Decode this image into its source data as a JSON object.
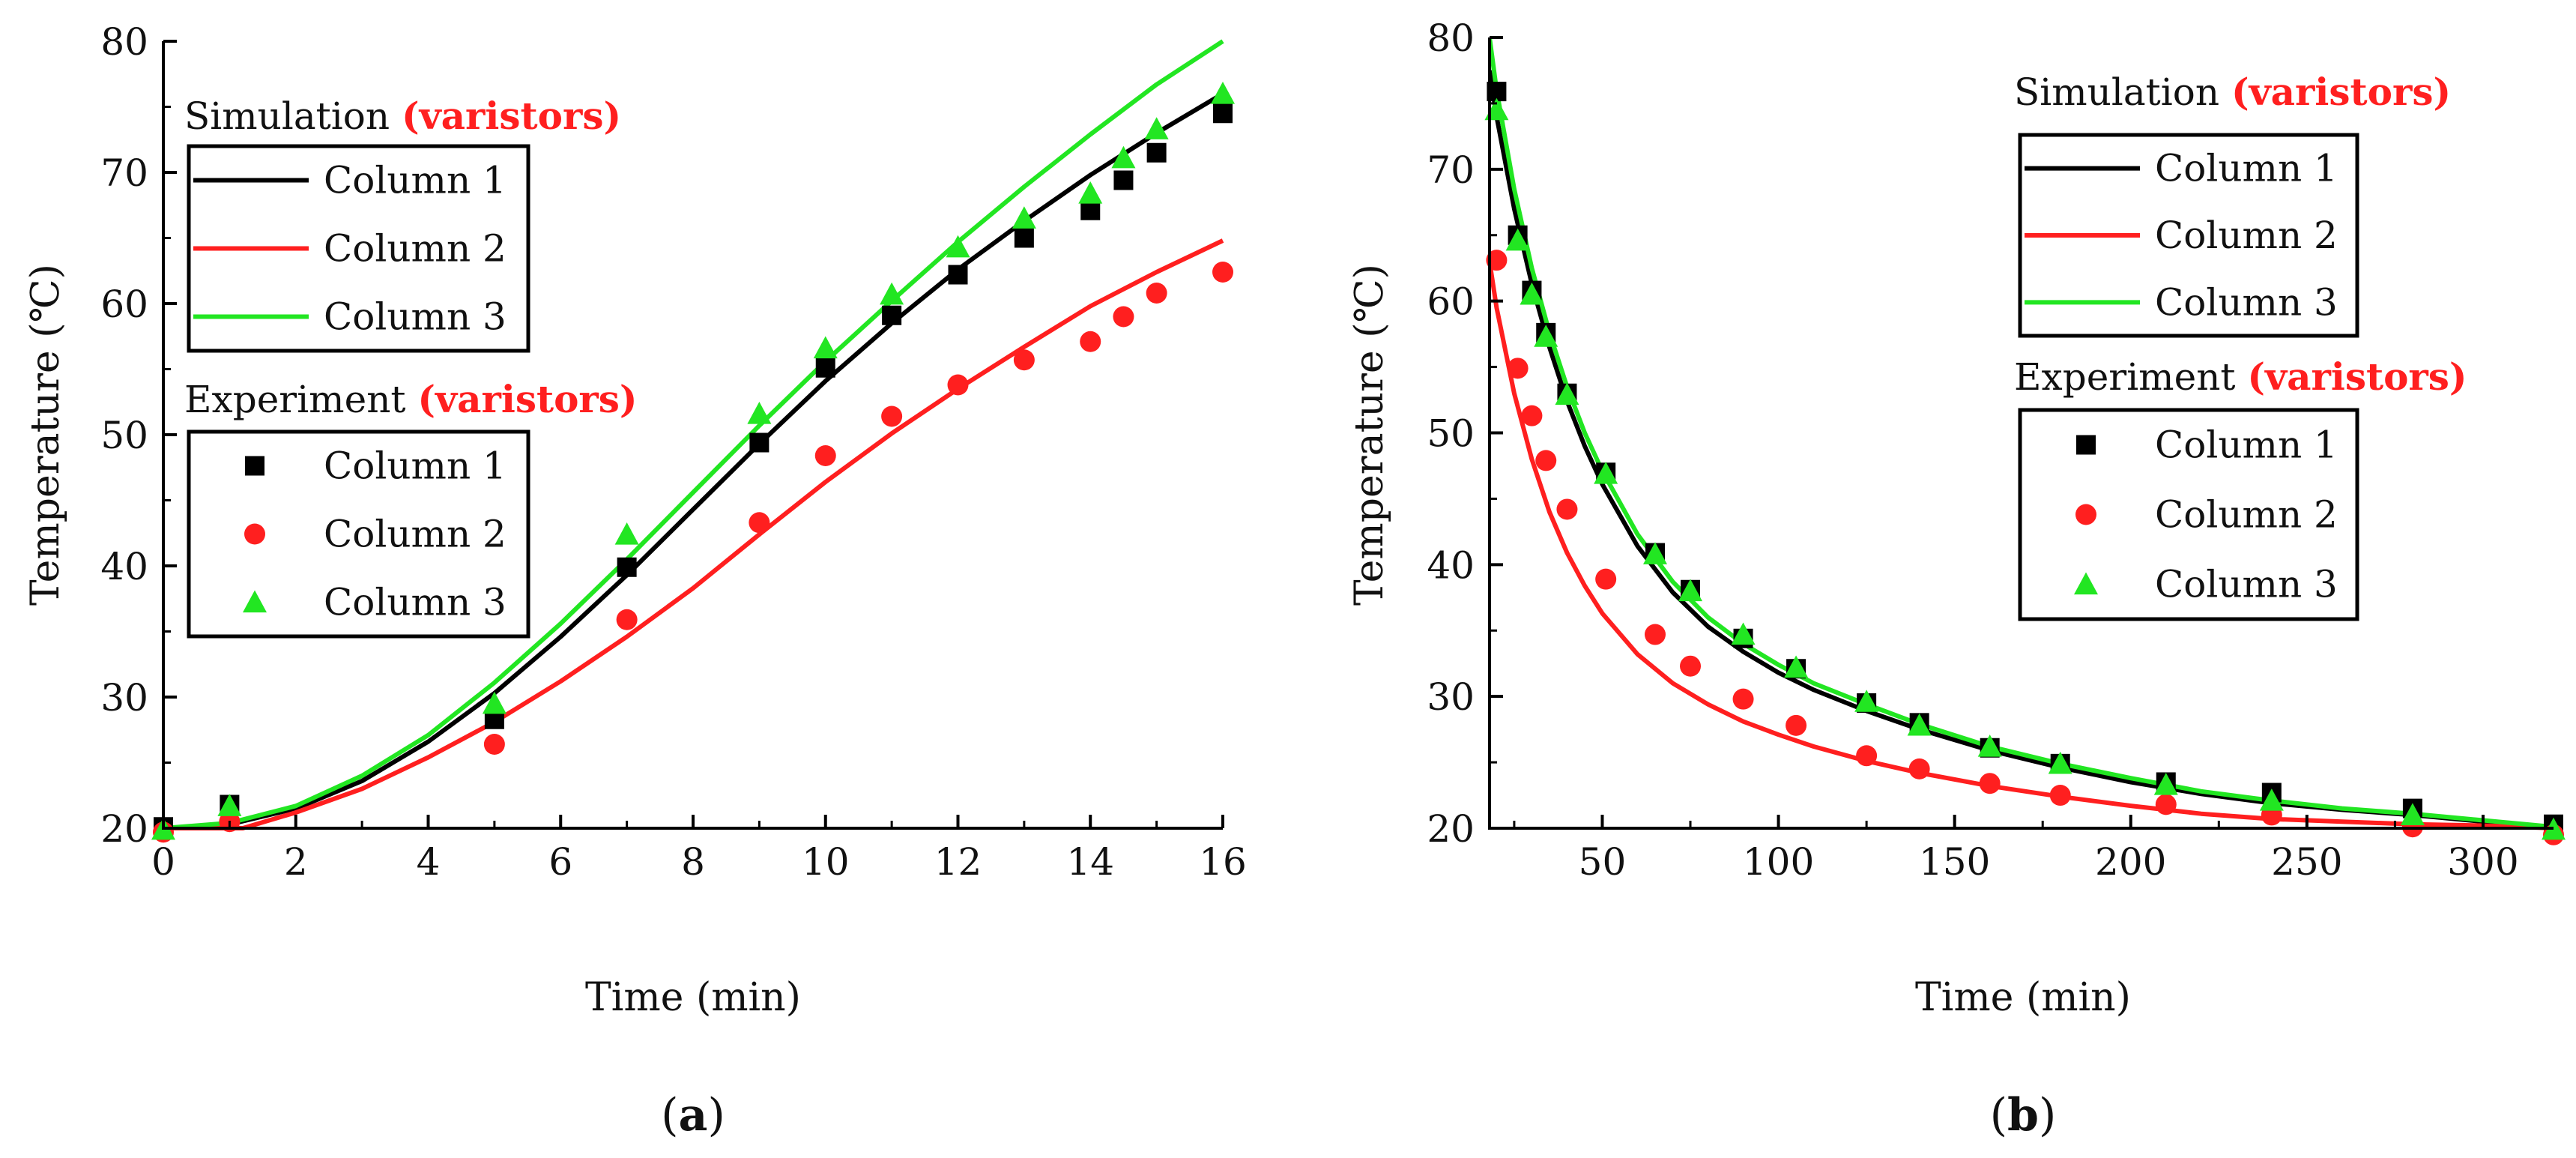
{
  "colors": {
    "col1": "#000000",
    "col2": "#ff1f1f",
    "col3": "#22e622",
    "highlight": "#ff1f1f",
    "axis": "#000000"
  },
  "chart_data": [
    {
      "type": "line",
      "panel_label": {
        "open": "(",
        "letter": "a",
        "close": ")"
      },
      "xlabel": "Time (min)",
      "ylabel": "Temperature (℃)",
      "xlim": [
        0,
        16
      ],
      "ylim": [
        20,
        80
      ],
      "xticks": [
        0,
        2,
        4,
        6,
        8,
        10,
        12,
        14,
        16
      ],
      "yticks": [
        20,
        30,
        40,
        50,
        60,
        70,
        80
      ],
      "grid": false,
      "legend_sim": {
        "title": "Simulation",
        "highlight": "(varistors)",
        "items": [
          "Column 1",
          "Column 2",
          "Column 3"
        ]
      },
      "legend_exp": {
        "title": "Experiment",
        "highlight": "(varistors)",
        "items": [
          "Column 1",
          "Column 2",
          "Column 3"
        ]
      },
      "simulation": [
        {
          "name": "Column 1",
          "x": [
            0,
            1,
            2,
            3,
            4,
            5,
            6,
            7,
            8,
            9,
            10,
            11,
            12,
            13,
            14,
            15,
            16
          ],
          "y": [
            20,
            20.3,
            21.5,
            23.6,
            26.6,
            30.3,
            34.6,
            39.3,
            44.3,
            49.3,
            54.1,
            58.5,
            62.6,
            66.3,
            69.8,
            73.0,
            76.0
          ]
        },
        {
          "name": "Column 2",
          "x": [
            0,
            1,
            1.2,
            2,
            3,
            4,
            5,
            6,
            7,
            8,
            9,
            10,
            11,
            12,
            13,
            14,
            15,
            16
          ],
          "y": [
            20,
            20.0,
            20.0,
            21.2,
            23.0,
            25.4,
            28.1,
            31.2,
            34.6,
            38.3,
            42.4,
            46.4,
            50.1,
            53.5,
            56.7,
            59.8,
            62.4,
            64.8
          ]
        },
        {
          "name": "Column 3",
          "x": [
            0,
            1,
            2,
            3,
            4,
            5,
            6,
            7,
            8,
            9,
            10,
            11,
            12,
            13,
            14,
            15,
            16
          ],
          "y": [
            20,
            20.4,
            21.7,
            24.0,
            27.1,
            31.1,
            35.6,
            40.5,
            45.6,
            50.7,
            55.6,
            60.2,
            64.7,
            68.9,
            72.9,
            76.7,
            80.0
          ]
        }
      ],
      "experiment": [
        {
          "name": "Column 1",
          "marker": "square",
          "x": [
            0,
            1,
            5,
            7,
            9,
            10,
            11,
            12,
            13,
            14,
            14.5,
            15,
            16
          ],
          "y": [
            20.1,
            21.8,
            28.3,
            39.9,
            49.4,
            55.1,
            59.1,
            62.2,
            65.0,
            67.1,
            69.4,
            71.5,
            74.5
          ]
        },
        {
          "name": "Column 2",
          "marker": "circle",
          "x": [
            0,
            1,
            5,
            7,
            9,
            10,
            11,
            12,
            13,
            14,
            14.5,
            15,
            16
          ],
          "y": [
            19.7,
            20.5,
            26.4,
            35.9,
            43.3,
            48.4,
            51.4,
            53.8,
            55.7,
            57.1,
            59.0,
            60.8,
            62.4
          ]
        },
        {
          "name": "Column 3",
          "marker": "triangle",
          "x": [
            0,
            1,
            5,
            7,
            9,
            10,
            11,
            12,
            13,
            14,
            14.5,
            15,
            16
          ],
          "y": [
            19.9,
            21.7,
            29.5,
            42.4,
            51.6,
            56.6,
            60.7,
            64.3,
            66.5,
            68.4,
            71.1,
            73.3,
            76.0
          ]
        }
      ]
    },
    {
      "type": "line",
      "panel_label": {
        "open": "(",
        "letter": "b",
        "close": ")"
      },
      "xlabel": "Time (min)",
      "ylabel": "Temperature (℃)",
      "xlim": [
        18,
        320
      ],
      "ylim": [
        20,
        80
      ],
      "xticks": [
        50,
        100,
        150,
        200,
        250,
        300
      ],
      "yticks": [
        20,
        30,
        40,
        50,
        60,
        70,
        80
      ],
      "grid": false,
      "legend_sim": {
        "title": "Simulation",
        "highlight": "(varistors)",
        "items": [
          "Column 1",
          "Column 2",
          "Column 3"
        ]
      },
      "legend_exp": {
        "title": "Experiment",
        "highlight": "(varistors)",
        "items": [
          "Column 1",
          "Column 2",
          "Column 3"
        ]
      },
      "simulation": [
        {
          "name": "Column 1",
          "x": [
            18,
            20,
            25,
            30,
            35,
            40,
            45,
            50,
            60,
            70,
            80,
            90,
            100,
            110,
            125,
            140,
            160,
            180,
            200,
            220,
            240,
            260,
            280,
            300,
            320
          ],
          "y": [
            77.5,
            74.0,
            67.0,
            61.3,
            56.5,
            52.4,
            49.0,
            46.1,
            41.4,
            37.9,
            35.3,
            33.4,
            31.8,
            30.5,
            28.9,
            27.5,
            25.9,
            24.6,
            23.5,
            22.6,
            21.9,
            21.4,
            21.0,
            20.5,
            20.0
          ]
        },
        {
          "name": "Column 2",
          "x": [
            18,
            20,
            25,
            30,
            35,
            40,
            45,
            50,
            60,
            70,
            80,
            90,
            100,
            110,
            125,
            140,
            160,
            180,
            200,
            220,
            240,
            260,
            280,
            300,
            320
          ],
          "y": [
            63.0,
            59.5,
            53.0,
            48.0,
            44.0,
            40.9,
            38.4,
            36.3,
            33.2,
            31.0,
            29.4,
            28.1,
            27.1,
            26.2,
            25.1,
            24.2,
            23.2,
            22.4,
            21.7,
            21.1,
            20.7,
            20.5,
            20.3,
            20.2,
            20.0
          ]
        },
        {
          "name": "Column 3",
          "x": [
            18,
            20,
            25,
            30,
            35,
            40,
            45,
            50,
            60,
            70,
            80,
            90,
            100,
            110,
            125,
            140,
            160,
            180,
            200,
            220,
            240,
            260,
            280,
            300,
            320
          ],
          "y": [
            80.0,
            76.0,
            68.5,
            62.5,
            57.6,
            53.5,
            50.0,
            47.1,
            42.3,
            38.7,
            36.0,
            34.0,
            32.4,
            31.0,
            29.4,
            27.9,
            26.2,
            24.9,
            23.8,
            22.8,
            22.1,
            21.5,
            21.1,
            20.6,
            20.1
          ]
        }
      ],
      "experiment": [
        {
          "name": "Column 1",
          "marker": "square",
          "x": [
            20,
            26,
            30,
            34,
            40,
            51,
            65,
            75,
            90,
            105,
            125,
            140,
            160,
            180,
            210,
            240,
            280,
            320
          ],
          "y": [
            75.9,
            65.0,
            60.8,
            57.6,
            53.0,
            47.0,
            40.9,
            38.1,
            34.4,
            32.1,
            29.5,
            28.0,
            26.1,
            24.9,
            23.5,
            22.7,
            21.5,
            20.3
          ]
        },
        {
          "name": "Column 2",
          "marker": "circle",
          "x": [
            20,
            26,
            30,
            34,
            40,
            51,
            65,
            75,
            90,
            105,
            125,
            140,
            160,
            180,
            210,
            240,
            280,
            320
          ],
          "y": [
            63.1,
            54.9,
            51.3,
            47.9,
            44.2,
            38.9,
            34.7,
            32.3,
            29.8,
            27.8,
            25.5,
            24.5,
            23.4,
            22.5,
            21.8,
            21.0,
            20.1,
            19.5
          ]
        },
        {
          "name": "Column 3",
          "marker": "triangle",
          "x": [
            20,
            26,
            30,
            34,
            40,
            51,
            65,
            75,
            90,
            105,
            125,
            140,
            160,
            180,
            210,
            240,
            280,
            320
          ],
          "y": [
            74.5,
            64.6,
            60.5,
            57.3,
            52.9,
            46.9,
            40.8,
            38.0,
            34.7,
            32.2,
            29.6,
            27.8,
            26.2,
            24.9,
            23.3,
            22.1,
            21.0,
            19.9
          ]
        }
      ]
    }
  ]
}
